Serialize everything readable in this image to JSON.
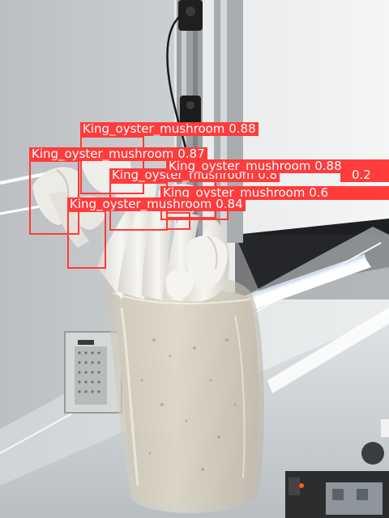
{
  "photo": {
    "subject": "king oyster mushrooms growing out of a plastic cultivation bag",
    "detection_color": "#ff3b3b"
  },
  "detections": [
    {
      "label": "King_oyster_mushroom",
      "score": "0.88"
    },
    {
      "label": "King_oyster_mushroom",
      "score": "0.87"
    },
    {
      "label": "King_oyster_mushroom",
      "score": "0.8"
    },
    {
      "label": "King_oyster_mushroom",
      "score": "0.88"
    },
    {
      "label": "King_oyster_mushroom",
      "score": "0.2"
    },
    {
      "label": "King_oyster_mushroom",
      "score": "0.6"
    },
    {
      "label": "King_oyster_mushroom",
      "score": "0.84"
    }
  ]
}
